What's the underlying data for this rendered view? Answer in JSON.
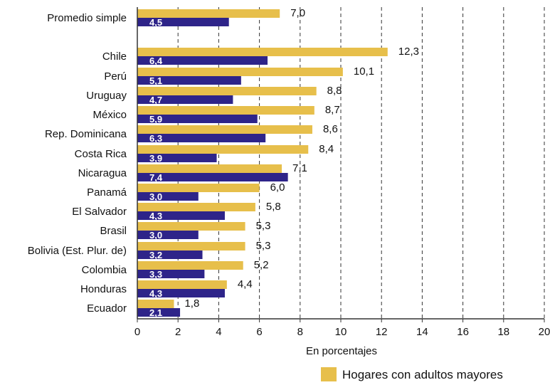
{
  "colors": {
    "primary": "#E7BF4B",
    "secondary": "#2E2489",
    "grid": "#333333",
    "axis": "#333333"
  },
  "chart_data": {
    "type": "bar",
    "orientation": "horizontal",
    "categories": [
      "Promedio simple",
      "Chile",
      "Perú",
      "Uruguay",
      "México",
      "Rep. Dominicana",
      "Costa Rica",
      "Nicaragua",
      "Panamá",
      "El Salvador",
      "Brasil",
      "Bolivia (Est. Plur. de)",
      "Colombia",
      "Honduras",
      "Ecuador"
    ],
    "series": [
      {
        "name": "Hogares con adultos mayores",
        "values": [
          7.0,
          12.3,
          10.1,
          8.8,
          8.7,
          8.6,
          8.4,
          7.1,
          6.0,
          5.8,
          5.3,
          5.3,
          5.2,
          4.4,
          1.8
        ],
        "labels": [
          "7,0",
          "12,3",
          "10,1",
          "8,8",
          "8,7",
          "8,6",
          "8,4",
          "7,1",
          "6,0",
          "5,8",
          "5,3",
          "5,3",
          "5,2",
          "4,4",
          "1,8"
        ]
      },
      {
        "values": [
          4.5,
          6.4,
          5.1,
          4.7,
          5.9,
          6.3,
          3.9,
          7.4,
          3.0,
          4.3,
          3.0,
          3.2,
          3.3,
          4.3,
          2.1
        ],
        "labels": [
          "4,5",
          "6,4",
          "5,1",
          "4,7",
          "5,9",
          "6,3",
          "3,9",
          "7,4",
          "3,0",
          "4,3",
          "3,0",
          "3,2",
          "3,3",
          "4,3",
          "2,1"
        ]
      }
    ],
    "xlabel": "En porcentajes",
    "xlim": [
      0,
      20
    ],
    "xticks": [
      0,
      2,
      4,
      6,
      8,
      10,
      12,
      14,
      16,
      18,
      20
    ],
    "grid": "vertical dashed",
    "legend": {
      "entries": [
        "Hogares con adultos mayores"
      ],
      "position": "bottom-right"
    }
  }
}
